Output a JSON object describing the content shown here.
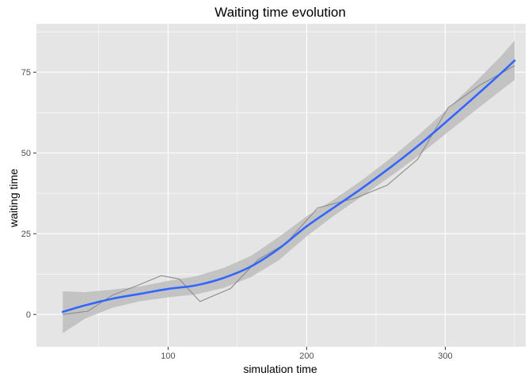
{
  "chart_data": {
    "type": "line",
    "title": "Waiting time evolution",
    "xlabel": "simulation time",
    "ylabel": "waiting time",
    "xlim": [
      5,
      358
    ],
    "ylim": [
      -10,
      90
    ],
    "x_ticks": [
      100,
      200,
      300
    ],
    "y_ticks": [
      0,
      25,
      50,
      75
    ],
    "grid": true,
    "colors": {
      "panel": "#e5e5e5",
      "grid": "#ffffff",
      "raw_line": "#8c8c8c",
      "smooth_line": "#3366ff",
      "ribbon": "#bdbdbd"
    },
    "series": [
      {
        "kind": "raw",
        "x": [
          24,
          42,
          60,
          78,
          95,
          108,
          123,
          145,
          165,
          185,
          208,
          235,
          258,
          280,
          302,
          325,
          350
        ],
        "y": [
          0,
          1,
          6,
          9,
          12,
          11,
          4,
          8,
          17,
          22,
          33,
          36,
          40,
          48,
          64,
          71,
          77
        ]
      },
      {
        "kind": "smooth",
        "x": [
          24,
          40,
          60,
          80,
          100,
          120,
          140,
          160,
          180,
          200,
          220,
          240,
          260,
          280,
          300,
          320,
          340,
          350
        ],
        "y": [
          0.8,
          2.8,
          4.9,
          6.4,
          7.9,
          9,
          11.3,
          14.9,
          20.4,
          27.3,
          33.2,
          39.1,
          45.4,
          52.1,
          59.4,
          66.9,
          74.6,
          78.6
        ],
        "lower": [
          -5.8,
          -1.3,
          2.1,
          4.1,
          5.3,
          6.2,
          8.2,
          11.6,
          16.8,
          24.2,
          30.7,
          36.6,
          42.6,
          48.9,
          55.8,
          62.6,
          69.3,
          72.6
        ],
        "upper": [
          7.2,
          6.9,
          7.7,
          8.7,
          10.4,
          11.8,
          14.4,
          18.2,
          24,
          30.4,
          35.7,
          41.6,
          48.2,
          55.3,
          63,
          71.2,
          79.9,
          84.8
        ]
      }
    ]
  }
}
